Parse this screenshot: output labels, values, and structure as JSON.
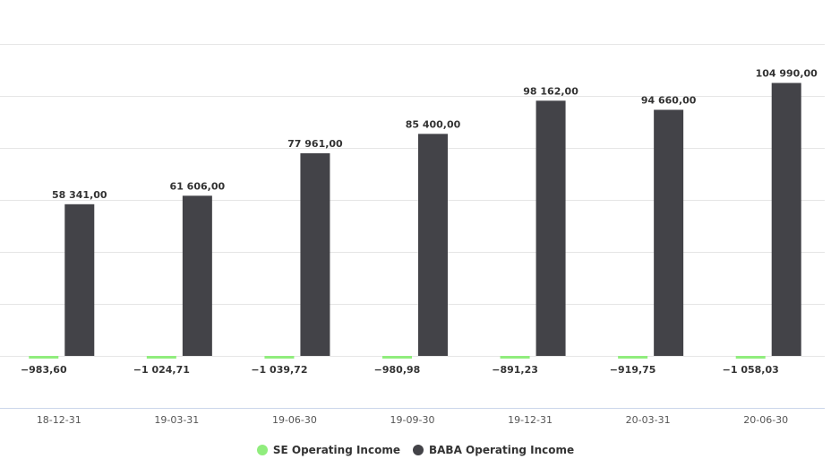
{
  "chart_data": {
    "type": "bar",
    "categories": [
      "18-12-31",
      "19-03-31",
      "19-06-30",
      "19-09-30",
      "19-12-31",
      "20-03-31",
      "20-06-30"
    ],
    "series": [
      {
        "name": "SE Operating Income",
        "color": "#90ed7d",
        "values": [
          -983.6,
          -1024.71,
          -1039.72,
          -980.98,
          -891.23,
          -919.75,
          -1058.03
        ],
        "labels": [
          "−983,60",
          "−1 024,71",
          "−1 039,72",
          "−980,98",
          "−891,23",
          "−919,75",
          "−1 058,03"
        ]
      },
      {
        "name": "BABA Operating Income",
        "color": "#434348",
        "values": [
          58341.0,
          61606.0,
          77961.0,
          85400.0,
          98162.0,
          94660.0,
          104990.0
        ],
        "labels": [
          "58 341,00",
          "61 606,00",
          "77 961,00",
          "85 400,00",
          "98 162,00",
          "94 660,00",
          "104 990,00"
        ]
      }
    ],
    "ylim": [
      -20000,
      120000
    ],
    "grid": true,
    "legend": "bottom-center"
  }
}
